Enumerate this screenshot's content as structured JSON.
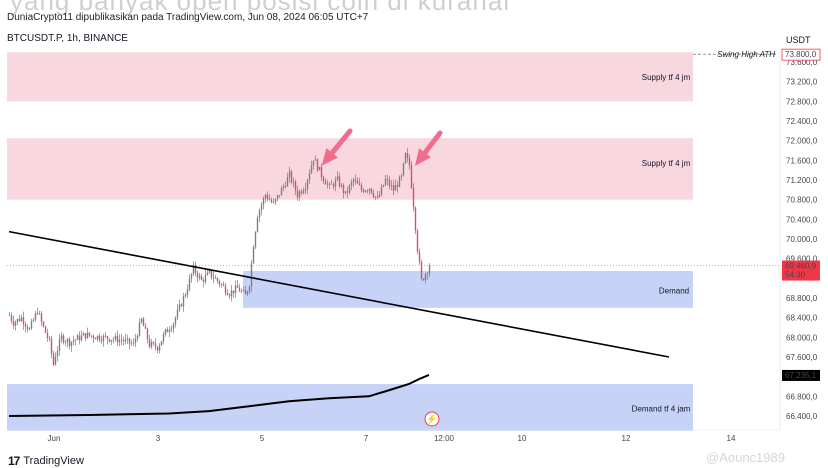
{
  "header": {
    "ghost_text": "yang banyak open posisi coin di kuranar",
    "published_line": "DuniaCrypto11 dipublikasikan pada TradingView.com, Jun 08, 2024 06:05 UTC+7",
    "symbol_line": "BTCUSDT.P, 1h, BINANCE",
    "currency": "USDT"
  },
  "price_axis": {
    "ticks": [
      "73.600,0",
      "73.200,0",
      "72.800,0",
      "72.400,0",
      "72.000,0",
      "71.600,0",
      "71.200,0",
      "70.800,0",
      "70.400,0",
      "70.000,0",
      "69.600,0",
      "68.800,0",
      "68.400,0",
      "68.000,0",
      "67.600,0",
      "67.200,0",
      "66.800,0",
      "66.400,0"
    ],
    "ath_tag": "73.800,0",
    "ath_label": "Swing High ATH",
    "last_price": "69.460,9",
    "countdown": "54:30",
    "ma_value": "67.235,1"
  },
  "time_axis": {
    "ticks": [
      "Jun",
      "3",
      "5",
      "7",
      "12:00",
      "10",
      "12",
      "14"
    ]
  },
  "zones": {
    "supply_top": "Supply tf 4 jm",
    "supply_mid": "Supply tf 4 jm",
    "demand": "Demand",
    "demand_4h": "Demand tf 4 jam"
  },
  "colors": {
    "supply_fill": "#f8d7df",
    "demand_fill": "#c7d2f7",
    "up_candle": "#7e7e7e",
    "down_candle": "#d0536a",
    "arrow": "#f06d8e",
    "ath_tag": "#f23645",
    "price_tag": "#f23645"
  },
  "footer": {
    "brand": "TradingView",
    "watermark": "@Aounc1989"
  },
  "chart_data": {
    "type": "candlestick",
    "ylim": [
      66200,
      74000
    ],
    "x_ticks": [
      "Jun",
      "3",
      "5",
      "7",
      "12:00",
      "10",
      "12",
      "14"
    ],
    "waypoints": [
      [
        0,
        68450
      ],
      [
        2,
        68300
      ],
      [
        6,
        68400
      ],
      [
        10,
        68150
      ],
      [
        14,
        68550
      ],
      [
        16,
        68300
      ],
      [
        20,
        67900
      ],
      [
        22,
        67450
      ],
      [
        23,
        67650
      ],
      [
        26,
        68000
      ],
      [
        30,
        67900
      ],
      [
        38,
        68050
      ],
      [
        46,
        68000
      ],
      [
        56,
        67950
      ],
      [
        62,
        67850
      ],
      [
        66,
        68350
      ],
      [
        70,
        67850
      ],
      [
        74,
        67800
      ],
      [
        78,
        68100
      ],
      [
        82,
        68300
      ],
      [
        88,
        68900
      ],
      [
        92,
        69400
      ],
      [
        96,
        69150
      ],
      [
        100,
        69300
      ],
      [
        104,
        69150
      ],
      [
        110,
        68900
      ],
      [
        114,
        69000
      ],
      [
        118,
        68850
      ],
      [
        120,
        69100
      ],
      [
        122,
        69900
      ],
      [
        124,
        70500
      ],
      [
        128,
        70900
      ],
      [
        132,
        70700
      ],
      [
        136,
        71000
      ],
      [
        140,
        71300
      ],
      [
        144,
        70900
      ],
      [
        148,
        71100
      ],
      [
        152,
        71650
      ],
      [
        156,
        71300
      ],
      [
        160,
        71050
      ],
      [
        164,
        71200
      ],
      [
        168,
        70900
      ],
      [
        172,
        71200
      ],
      [
        176,
        71000
      ],
      [
        180,
        71050
      ],
      [
        184,
        70800
      ],
      [
        188,
        71200
      ],
      [
        192,
        71000
      ],
      [
        196,
        71250
      ],
      [
        198,
        71700
      ],
      [
        200,
        71500
      ],
      [
        202,
        70700
      ],
      [
        204,
        69800
      ],
      [
        206,
        69150
      ],
      [
        208,
        69300
      ],
      [
        210,
        69460
      ]
    ],
    "supply_zones": [
      [
        72800,
        73800
      ],
      [
        70800,
        72050
      ]
    ],
    "demand_zones": [
      [
        68600,
        69350
      ],
      [
        66100,
        67050
      ]
    ],
    "trendline": [
      [
        0,
        70150
      ],
      [
        330,
        67600
      ]
    ],
    "moving_average": [
      [
        0,
        66400
      ],
      [
        40,
        66420
      ],
      [
        80,
        66450
      ],
      [
        100,
        66500
      ],
      [
        120,
        66600
      ],
      [
        130,
        66650
      ],
      [
        140,
        66700
      ],
      [
        160,
        66760
      ],
      [
        180,
        66800
      ],
      [
        192,
        66950
      ],
      [
        200,
        67050
      ],
      [
        205,
        67150
      ],
      [
        210,
        67235
      ]
    ],
    "annotations": [
      "Supply tf 4 jm",
      "Supply tf 4 jm",
      "Demand",
      "Demand tf 4 jam",
      "Swing High ATH"
    ]
  }
}
